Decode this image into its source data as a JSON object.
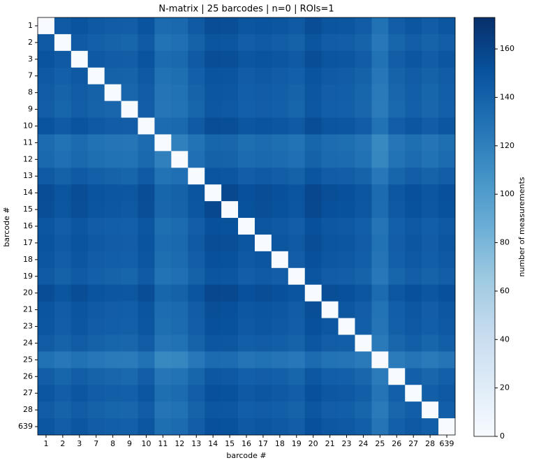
{
  "chart_data": {
    "type": "heatmap",
    "title": "N-matrix | 25 barcodes | n=0 | ROIs=1",
    "xlabel": "barcode #",
    "ylabel": "barcode #",
    "colorbar_label": "number of measurements",
    "colormap": "Blues",
    "zlim": [
      0,
      173
    ],
    "colorbar_ticks": [
      0,
      20,
      40,
      60,
      80,
      100,
      120,
      140,
      160
    ],
    "categories": [
      "1",
      "2",
      "3",
      "7",
      "8",
      "9",
      "10",
      "11",
      "12",
      "13",
      "14",
      "15",
      "16",
      "17",
      "18",
      "19",
      "20",
      "21",
      "23",
      "24",
      "25",
      "26",
      "27",
      "28",
      "639"
    ],
    "z": [
      [
        0,
        145,
        150,
        146,
        144,
        143,
        150,
        134,
        136,
        145,
        154,
        153,
        148,
        150,
        148,
        145,
        154,
        149,
        148,
        144,
        130,
        143,
        148,
        144,
        148
      ],
      [
        145,
        0,
        145,
        141,
        139,
        138,
        145,
        129,
        131,
        140,
        149,
        148,
        143,
        145,
        143,
        140,
        149,
        144,
        143,
        139,
        125,
        138,
        143,
        139,
        143
      ],
      [
        150,
        145,
        0,
        146,
        144,
        143,
        150,
        134,
        136,
        145,
        154,
        153,
        148,
        150,
        148,
        145,
        154,
        149,
        148,
        144,
        130,
        143,
        148,
        144,
        148
      ],
      [
        146,
        141,
        146,
        0,
        140,
        139,
        146,
        130,
        132,
        141,
        150,
        149,
        144,
        146,
        144,
        141,
        150,
        145,
        144,
        140,
        126,
        139,
        144,
        140,
        144
      ],
      [
        144,
        139,
        144,
        140,
        0,
        137,
        144,
        128,
        130,
        139,
        148,
        147,
        142,
        144,
        142,
        139,
        148,
        143,
        142,
        138,
        124,
        137,
        142,
        138,
        142
      ],
      [
        143,
        138,
        143,
        139,
        137,
        0,
        143,
        127,
        129,
        138,
        147,
        146,
        141,
        143,
        141,
        138,
        147,
        142,
        141,
        137,
        123,
        136,
        141,
        137,
        141
      ],
      [
        150,
        145,
        150,
        146,
        144,
        143,
        0,
        134,
        136,
        145,
        154,
        153,
        148,
        150,
        148,
        145,
        154,
        149,
        148,
        144,
        130,
        143,
        148,
        144,
        148
      ],
      [
        134,
        129,
        134,
        130,
        128,
        127,
        134,
        0,
        120,
        129,
        138,
        137,
        132,
        134,
        132,
        129,
        138,
        133,
        132,
        128,
        114,
        127,
        132,
        128,
        132
      ],
      [
        136,
        131,
        136,
        132,
        130,
        129,
        136,
        120,
        0,
        131,
        140,
        139,
        134,
        136,
        134,
        131,
        140,
        135,
        134,
        130,
        116,
        129,
        134,
        130,
        134
      ],
      [
        145,
        140,
        145,
        141,
        139,
        138,
        145,
        129,
        131,
        0,
        149,
        148,
        143,
        145,
        143,
        140,
        149,
        144,
        143,
        139,
        125,
        138,
        143,
        139,
        143
      ],
      [
        154,
        149,
        154,
        150,
        148,
        147,
        154,
        138,
        140,
        149,
        0,
        157,
        152,
        154,
        152,
        149,
        158,
        153,
        152,
        148,
        134,
        147,
        152,
        148,
        152
      ],
      [
        153,
        148,
        153,
        149,
        147,
        146,
        153,
        137,
        139,
        148,
        157,
        0,
        151,
        153,
        151,
        148,
        157,
        152,
        151,
        147,
        133,
        146,
        151,
        147,
        151
      ],
      [
        148,
        143,
        148,
        144,
        142,
        141,
        148,
        132,
        134,
        143,
        152,
        151,
        0,
        148,
        146,
        143,
        152,
        147,
        146,
        142,
        128,
        141,
        146,
        142,
        146
      ],
      [
        150,
        145,
        150,
        146,
        144,
        143,
        150,
        134,
        136,
        145,
        154,
        153,
        148,
        0,
        148,
        145,
        154,
        149,
        148,
        144,
        130,
        143,
        148,
        144,
        148
      ],
      [
        148,
        143,
        148,
        144,
        142,
        141,
        148,
        132,
        134,
        143,
        152,
        151,
        146,
        148,
        0,
        143,
        152,
        147,
        146,
        142,
        128,
        141,
        146,
        142,
        146
      ],
      [
        145,
        140,
        145,
        141,
        139,
        138,
        145,
        129,
        131,
        140,
        149,
        148,
        143,
        145,
        143,
        0,
        149,
        144,
        143,
        139,
        125,
        138,
        143,
        139,
        143
      ],
      [
        154,
        149,
        154,
        150,
        148,
        147,
        154,
        138,
        140,
        149,
        158,
        157,
        152,
        154,
        152,
        149,
        0,
        153,
        152,
        148,
        134,
        147,
        152,
        148,
        152
      ],
      [
        149,
        144,
        149,
        145,
        143,
        142,
        149,
        133,
        135,
        144,
        153,
        152,
        147,
        149,
        147,
        144,
        153,
        0,
        147,
        143,
        129,
        142,
        147,
        143,
        147
      ],
      [
        148,
        143,
        148,
        144,
        142,
        141,
        148,
        132,
        134,
        143,
        152,
        151,
        146,
        148,
        146,
        143,
        152,
        147,
        0,
        142,
        128,
        141,
        146,
        142,
        146
      ],
      [
        144,
        139,
        144,
        140,
        138,
        137,
        144,
        128,
        130,
        139,
        148,
        147,
        142,
        144,
        142,
        139,
        148,
        143,
        142,
        0,
        124,
        137,
        142,
        138,
        142
      ],
      [
        130,
        125,
        130,
        126,
        124,
        123,
        130,
        114,
        116,
        125,
        134,
        133,
        128,
        130,
        128,
        125,
        134,
        129,
        128,
        124,
        0,
        123,
        128,
        124,
        128
      ],
      [
        143,
        138,
        143,
        139,
        137,
        136,
        143,
        127,
        129,
        138,
        147,
        146,
        141,
        143,
        141,
        138,
        147,
        142,
        141,
        137,
        123,
        0,
        141,
        137,
        141
      ],
      [
        148,
        143,
        148,
        144,
        142,
        141,
        148,
        132,
        134,
        143,
        152,
        151,
        146,
        148,
        146,
        143,
        152,
        147,
        146,
        142,
        128,
        141,
        0,
        142,
        146
      ],
      [
        144,
        139,
        144,
        140,
        138,
        137,
        144,
        128,
        130,
        139,
        148,
        147,
        142,
        144,
        142,
        139,
        148,
        143,
        142,
        138,
        124,
        137,
        142,
        0,
        142
      ],
      [
        148,
        143,
        148,
        144,
        142,
        141,
        148,
        132,
        134,
        143,
        152,
        151,
        146,
        148,
        146,
        143,
        152,
        147,
        146,
        142,
        128,
        141,
        146,
        142,
        0
      ]
    ]
  }
}
